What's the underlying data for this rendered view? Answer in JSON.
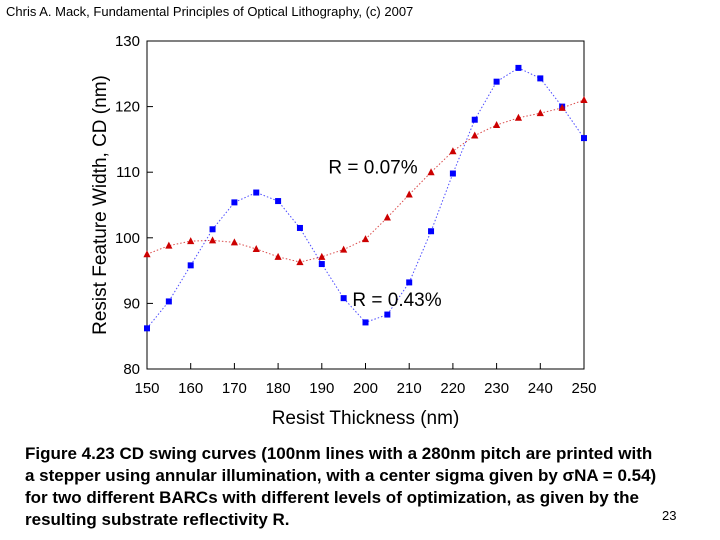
{
  "header": "Chris A. Mack, Fundamental Principles of Optical Lithography, (c) 2007",
  "caption": {
    "part1": "Figure 4.23  CD swing curves (100nm lines with a 280nm pitch are printed with a stepper using annular illumination, with a center sigma given by ",
    "sigma_symbol": "σ",
    "part2": "NA = 0.54) for two different BARCs with different levels of optimization, as given by the resulting substrate reflectivity R."
  },
  "page_number": "23",
  "chart_data": {
    "type": "scatter",
    "xlabel": "Resist Thickness (nm)",
    "ylabel": "Resist Feature Width, CD (nm)",
    "xlim": [
      150,
      250
    ],
    "ylim": [
      80,
      130
    ],
    "xticks": [
      150,
      160,
      170,
      180,
      190,
      200,
      210,
      220,
      230,
      240,
      250
    ],
    "yticks": [
      80,
      90,
      100,
      110,
      120,
      130
    ],
    "grid": false,
    "series": [
      {
        "name": "R = 0.43%",
        "marker": "square",
        "color": "#0000ff",
        "x": [
          150,
          155,
          160,
          165,
          170,
          175,
          180,
          185,
          190,
          195,
          200,
          205,
          210,
          215,
          220,
          225,
          230,
          235,
          240,
          245,
          250
        ],
        "y": [
          86.2,
          90.3,
          95.8,
          101.3,
          105.4,
          106.9,
          105.6,
          101.5,
          96.0,
          90.8,
          87.1,
          88.3,
          93.2,
          101.0,
          109.8,
          118.0,
          123.8,
          125.9,
          124.3,
          120.0,
          115.2
        ]
      },
      {
        "name": "R = 0.07%",
        "marker": "triangle",
        "color": "#cc0000",
        "x": [
          150,
          155,
          160,
          165,
          170,
          175,
          180,
          185,
          190,
          195,
          200,
          205,
          210,
          215,
          220,
          225,
          230,
          235,
          240,
          245,
          250
        ],
        "y": [
          97.5,
          98.8,
          99.5,
          99.6,
          99.3,
          98.3,
          97.1,
          96.3,
          97.1,
          98.2,
          99.8,
          103.1,
          106.6,
          110.0,
          113.2,
          115.6,
          117.2,
          118.3,
          119.0,
          119.8,
          121.0
        ]
      }
    ],
    "annotations": [
      {
        "text": "R = 0.07%",
        "x": 191.5,
        "y": 109.8
      },
      {
        "text": "R = 0.43%",
        "x": 197,
        "y": 89.6
      }
    ]
  }
}
